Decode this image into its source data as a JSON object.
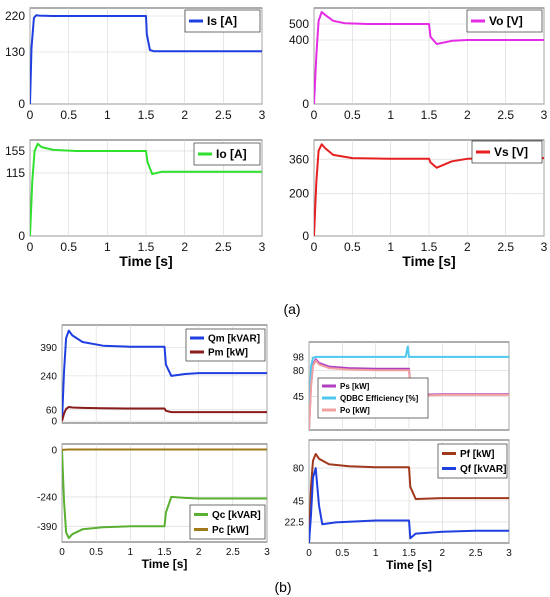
{
  "captions": {
    "a": "(a)",
    "b": "(b)"
  },
  "chart_data": [
    {
      "type": "line",
      "xlabel": "",
      "xticks": [
        0,
        0.5,
        1,
        1.5,
        2,
        2.5,
        3
      ],
      "xlim": [
        0,
        3
      ],
      "ylim": [
        0,
        240
      ],
      "yticks": [
        0,
        130,
        220
      ],
      "grid": true,
      "legend_position": "top-right",
      "series": [
        {
          "name": "Is [A]",
          "color": "#1f3fe0",
          "x": [
            0,
            0.02,
            0.05,
            0.08,
            0.12,
            0.3,
            0.6,
            1.0,
            1.5,
            1.51,
            1.55,
            1.6,
            2.0,
            2.5,
            3.0
          ],
          "y": [
            0,
            140,
            215,
            222,
            221,
            220,
            220,
            220,
            220,
            175,
            135,
            132,
            132,
            132,
            132
          ]
        }
      ]
    },
    {
      "type": "line",
      "xlabel": "",
      "xticks": [
        0,
        0.5,
        1,
        1.5,
        2,
        2.5,
        3
      ],
      "xlim": [
        0,
        3
      ],
      "ylim": [
        0,
        600
      ],
      "yticks": [
        0,
        400,
        500
      ],
      "grid": true,
      "legend_position": "top-right",
      "series": [
        {
          "name": "Vo [V]",
          "color": "#e62be6",
          "x": [
            0,
            0.03,
            0.06,
            0.1,
            0.15,
            0.25,
            0.4,
            0.7,
            1.0,
            1.5,
            1.52,
            1.6,
            1.8,
            2.0,
            2.5,
            3.0
          ],
          "y": [
            0,
            300,
            520,
            575,
            555,
            520,
            505,
            500,
            500,
            500,
            420,
            375,
            395,
            400,
            400,
            400
          ]
        }
      ]
    },
    {
      "type": "line",
      "xlabel": "Time [s]",
      "xticks": [
        0,
        0.5,
        1,
        1.5,
        2,
        2.5,
        3
      ],
      "xlim": [
        0,
        3
      ],
      "ylim": [
        0,
        175
      ],
      "yticks": [
        0,
        115,
        155
      ],
      "grid": true,
      "legend_position": "top-right",
      "series": [
        {
          "name": "Io [A]",
          "color": "#2fe02f",
          "x": [
            0,
            0.03,
            0.06,
            0.1,
            0.15,
            0.3,
            0.6,
            1.0,
            1.5,
            1.52,
            1.58,
            1.7,
            2.0,
            2.5,
            3.0
          ],
          "y": [
            0,
            100,
            155,
            168,
            162,
            157,
            155,
            155,
            155,
            135,
            113,
            117,
            117,
            117,
            117
          ]
        }
      ]
    },
    {
      "type": "line",
      "xlabel": "Time [s]",
      "xticks": [
        0,
        0.5,
        1,
        1.5,
        2,
        2.5,
        3
      ],
      "xlim": [
        0,
        3
      ],
      "ylim": [
        0,
        450
      ],
      "yticks": [
        0,
        200,
        360
      ],
      "grid": true,
      "legend_position": "top-right",
      "series": [
        {
          "name": "Vs [V]",
          "color": "#e62020",
          "x": [
            0,
            0.03,
            0.06,
            0.1,
            0.15,
            0.25,
            0.5,
            1.0,
            1.5,
            1.52,
            1.6,
            1.8,
            2.0,
            2.5,
            3.0
          ],
          "y": [
            0,
            250,
            400,
            430,
            410,
            380,
            365,
            362,
            362,
            345,
            320,
            350,
            362,
            365,
            365
          ]
        }
      ]
    },
    {
      "type": "line",
      "xlabel": "",
      "xticks": [
        0,
        0.5,
        1,
        1.5,
        2,
        2.5,
        3
      ],
      "xlim": [
        0,
        3
      ],
      "ylim": [
        -10,
        510
      ],
      "yticks": [
        0,
        60,
        240,
        390
      ],
      "grid": true,
      "legend_position": "top-right",
      "series": [
        {
          "name": "Qm [kVAR]",
          "color": "#1f3fe0",
          "x": [
            0,
            0.03,
            0.06,
            0.1,
            0.15,
            0.3,
            0.6,
            1.0,
            1.5,
            1.52,
            1.6,
            1.8,
            2.0,
            2.5,
            3.0
          ],
          "y": [
            0,
            260,
            440,
            480,
            455,
            420,
            400,
            395,
            395,
            300,
            240,
            250,
            255,
            255,
            255
          ]
        },
        {
          "name": "Pm [kW]",
          "color": "#8b1c1c",
          "x": [
            0,
            0.03,
            0.06,
            0.1,
            0.15,
            0.3,
            0.6,
            1.0,
            1.5,
            1.52,
            1.6,
            2.0,
            2.5,
            3.0
          ],
          "y": [
            0,
            40,
            65,
            75,
            72,
            70,
            68,
            67,
            67,
            55,
            48,
            48,
            48,
            48
          ]
        }
      ]
    },
    {
      "type": "line",
      "xlabel": "",
      "xticks": [
        0,
        0.5,
        1,
        1.5,
        2,
        2.5,
        3
      ],
      "xlim": [
        0,
        3
      ],
      "ylim": [
        0,
        118
      ],
      "yticks": [
        45,
        80,
        98
      ],
      "grid": true,
      "legend_position": "center",
      "series": [
        {
          "name": "Ps [kW]",
          "color": "#b040c0",
          "x": [
            0,
            0.03,
            0.06,
            0.1,
            0.15,
            0.3,
            0.6,
            1.0,
            1.5,
            1.52,
            1.6,
            2.0,
            2.5,
            3.0
          ],
          "y": [
            0,
            60,
            88,
            95,
            90,
            85,
            83,
            82,
            82,
            60,
            47,
            48,
            48,
            48
          ]
        },
        {
          "name": "QDBC Efficiency [%]",
          "color": "#4fc8f0",
          "x": [
            0,
            0.03,
            0.06,
            0.1,
            0.2,
            0.5,
            1.0,
            1.45,
            1.48,
            1.5,
            1.52,
            1.6,
            2.0,
            2.5,
            3.0
          ],
          "y": [
            0,
            85,
            97,
            98,
            98,
            98,
            98,
            98,
            112,
            98,
            98,
            98,
            98,
            98,
            98
          ]
        },
        {
          "name": "Po [kW]",
          "color": "#f0a0a0",
          "x": [
            0,
            0.03,
            0.06,
            0.1,
            0.15,
            0.3,
            0.6,
            1.0,
            1.5,
            1.52,
            1.6,
            2.0,
            2.5,
            3.0
          ],
          "y": [
            0,
            58,
            86,
            93,
            88,
            83,
            81,
            80,
            80,
            58,
            46,
            47,
            47,
            47
          ]
        }
      ]
    },
    {
      "type": "line",
      "xlabel": "Time [s]",
      "xticks": [
        0,
        0.5,
        1,
        1.5,
        2,
        2.5,
        3
      ],
      "xlim": [
        0,
        3
      ],
      "ylim": [
        -470,
        30
      ],
      "yticks": [
        0,
        -240,
        -390
      ],
      "grid": true,
      "legend_position": "bottom-right",
      "series": [
        {
          "name": "Qc [kVAR]",
          "color": "#5ab030",
          "x": [
            0,
            0.03,
            0.06,
            0.1,
            0.15,
            0.3,
            0.6,
            1.0,
            1.5,
            1.52,
            1.6,
            1.8,
            2.0,
            2.5,
            3.0
          ],
          "y": [
            0,
            -260,
            -420,
            -450,
            -430,
            -405,
            -395,
            -390,
            -390,
            -320,
            -240,
            -245,
            -248,
            -248,
            -248
          ]
        },
        {
          "name": "Pc [kW]",
          "color": "#a07a1a",
          "x": [
            0,
            0.1,
            0.5,
            1.0,
            1.5,
            2.0,
            2.5,
            3.0
          ],
          "y": [
            0,
            2,
            2,
            2,
            2,
            2,
            2,
            2
          ]
        }
      ]
    },
    {
      "type": "line",
      "xlabel": "Time [s]",
      "xticks": [
        0,
        0.5,
        1,
        1.5,
        2,
        2.5,
        3
      ],
      "xlim": [
        0,
        3
      ],
      "ylim": [
        0,
        110
      ],
      "yticks": [
        22.5,
        45,
        80
      ],
      "grid": true,
      "legend_position": "top-right",
      "series": [
        {
          "name": "Pf [kW]",
          "color": "#a0381c",
          "x": [
            0,
            0.03,
            0.06,
            0.1,
            0.15,
            0.3,
            0.6,
            1.0,
            1.5,
            1.52,
            1.6,
            2.0,
            2.5,
            3.0
          ],
          "y": [
            0,
            60,
            88,
            95,
            90,
            84,
            82,
            81,
            81,
            60,
            47,
            48,
            48,
            48
          ]
        },
        {
          "name": "Qf [kVAR]",
          "color": "#1f3fe0",
          "x": [
            0,
            0.03,
            0.06,
            0.1,
            0.15,
            0.2,
            0.4,
            1.0,
            1.5,
            1.52,
            1.6,
            2.0,
            2.5,
            3.0
          ],
          "y": [
            0,
            30,
            70,
            80,
            40,
            20,
            22,
            24,
            24,
            5,
            10,
            12,
            13,
            13
          ]
        }
      ]
    }
  ]
}
